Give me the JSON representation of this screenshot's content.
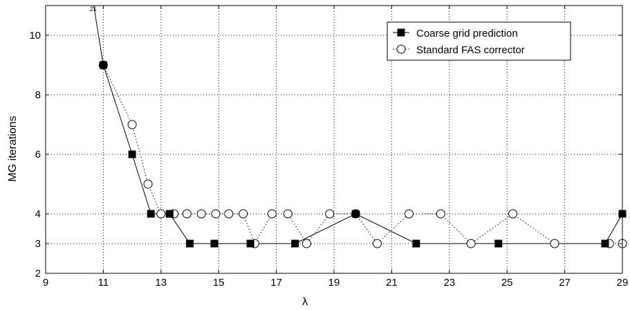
{
  "chart_data": {
    "type": "line",
    "title": "",
    "xlabel": "λ",
    "ylabel": "MG iterations",
    "xlim": [
      9,
      29
    ],
    "ylim": [
      2,
      11
    ],
    "xticks": [
      9,
      11,
      13,
      15,
      17,
      19,
      21,
      23,
      25,
      27,
      29
    ],
    "yticks": [
      2,
      3,
      4,
      6,
      8,
      10
    ],
    "ygrid_at": [
      3,
      4,
      6,
      8,
      10
    ],
    "grid": true,
    "legend_position": "top-right",
    "offscale_annotation": {
      "text": "21",
      "x": 10.65
    },
    "series": [
      {
        "name": "Coarse grid prediction",
        "marker": "filled-square",
        "line": "solid",
        "color": "#000000",
        "x": [
          10.5,
          11.0,
          12.0,
          12.65,
          13.3,
          14.0,
          14.85,
          16.1,
          17.65,
          19.75,
          21.85,
          24.7,
          28.4,
          29.0
        ],
        "y": [
          12,
          9,
          6,
          4,
          4,
          3,
          3,
          3,
          3,
          4,
          3,
          3,
          3,
          4
        ],
        "markers_x": [
          11.0,
          12.0,
          12.65,
          13.3,
          14.0,
          14.85,
          16.1,
          17.65,
          19.75,
          21.85,
          24.7,
          28.4,
          29.0
        ],
        "markers_y": [
          9,
          6,
          4,
          4,
          3,
          3,
          3,
          3,
          4,
          3,
          3,
          3,
          4
        ]
      },
      {
        "name": "Standard FAS corrector",
        "marker": "open-circle",
        "line": "dotted",
        "color": "#000000",
        "x": [
          11.0,
          12.0,
          12.55,
          13.0,
          13.45,
          13.9,
          14.4,
          14.9,
          15.35,
          15.85,
          16.25,
          16.85,
          17.4,
          18.05,
          18.85,
          19.75,
          20.5,
          21.6,
          22.7,
          23.75,
          25.2,
          26.65,
          28.55,
          29.0
        ],
        "y": [
          9,
          7,
          5,
          4,
          4,
          4,
          4,
          4,
          4,
          4,
          3,
          4,
          4,
          3,
          4,
          4,
          3,
          4,
          4,
          3,
          4,
          3,
          3,
          3
        ]
      }
    ]
  }
}
